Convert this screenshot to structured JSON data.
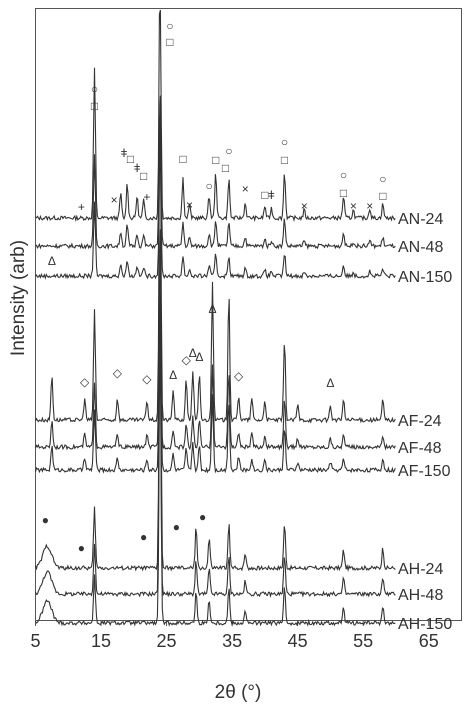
{
  "chart_data": {
    "type": "line",
    "title": "",
    "xlabel": "2θ (°)",
    "ylabel": "Intensity (arb)",
    "xlim": [
      5,
      70
    ],
    "x_ticks": [
      "5",
      "15",
      "25",
      "35",
      "45",
      "55",
      "65"
    ],
    "grid": false,
    "legend": "none",
    "line_color": "#333333",
    "series": [
      {
        "name": "AN-24",
        "x_range": [
          5,
          60
        ]
      },
      {
        "name": "AN-48",
        "x_range": [
          5,
          60
        ]
      },
      {
        "name": "AN-150",
        "x_range": [
          5,
          60
        ]
      },
      {
        "name": "AF-24",
        "x_range": [
          5,
          60
        ]
      },
      {
        "name": "AF-48",
        "x_range": [
          5,
          60
        ]
      },
      {
        "name": "AF-150",
        "x_range": [
          5,
          60
        ]
      },
      {
        "name": "AH-24",
        "x_range": [
          5,
          60
        ]
      },
      {
        "name": "AH-48",
        "x_range": [
          5,
          60
        ]
      },
      {
        "name": "AH-150",
        "x_range": [
          5,
          60
        ]
      }
    ],
    "annotations": [
      {
        "symbol": "○",
        "x": 25.5
      },
      {
        "symbol": "□",
        "x": 25.5
      },
      {
        "symbol": "○",
        "x": 14.0
      },
      {
        "symbol": "□",
        "x": 14.0
      },
      {
        "symbol": "ǂ",
        "x": 18.5
      },
      {
        "symbol": "ǂ",
        "x": 20.5
      },
      {
        "symbol": "□",
        "x": 19.5
      },
      {
        "symbol": "□",
        "x": 21.5
      },
      {
        "symbol": "+",
        "x": 12.0
      },
      {
        "symbol": "+",
        "x": 22.0
      },
      {
        "symbol": "×",
        "x": 17.0
      },
      {
        "symbol": "×",
        "x": 28.5
      },
      {
        "symbol": "□",
        "x": 27.5
      },
      {
        "symbol": "○",
        "x": 31.5
      },
      {
        "symbol": "□",
        "x": 32.5
      },
      {
        "symbol": "○",
        "x": 34.5
      },
      {
        "symbol": "□",
        "x": 34.0
      },
      {
        "symbol": "×",
        "x": 37.0
      },
      {
        "symbol": "□",
        "x": 40.0
      },
      {
        "symbol": "ǂ",
        "x": 41.0
      },
      {
        "symbol": "○",
        "x": 43.0
      },
      {
        "symbol": "□",
        "x": 43.0
      },
      {
        "symbol": "×",
        "x": 46.0
      },
      {
        "symbol": "○",
        "x": 52.0
      },
      {
        "symbol": "□",
        "x": 52.0
      },
      {
        "symbol": "×",
        "x": 53.5
      },
      {
        "symbol": "×",
        "x": 56.0
      },
      {
        "symbol": "○",
        "x": 58.0
      },
      {
        "symbol": "□",
        "x": 58.0
      },
      {
        "symbol": "Δ",
        "x": 7.5
      },
      {
        "symbol": "◇",
        "x": 12.5
      },
      {
        "symbol": "◇",
        "x": 17.5
      },
      {
        "symbol": "◇",
        "x": 22.0
      },
      {
        "symbol": "Δ",
        "x": 26.0
      },
      {
        "symbol": "◇",
        "x": 28.0
      },
      {
        "symbol": "Δ",
        "x": 29.0
      },
      {
        "symbol": "Δ",
        "x": 30.0
      },
      {
        "symbol": "Δ",
        "x": 32.0
      },
      {
        "symbol": "◇",
        "x": 36.0
      },
      {
        "symbol": "Δ",
        "x": 50.0
      },
      {
        "symbol": "●",
        "x": 6.5
      },
      {
        "symbol": "●",
        "x": 12.0
      },
      {
        "symbol": "●",
        "x": 21.5
      },
      {
        "symbol": "●",
        "x": 26.5
      },
      {
        "symbol": "●",
        "x": 30.5
      }
    ]
  }
}
